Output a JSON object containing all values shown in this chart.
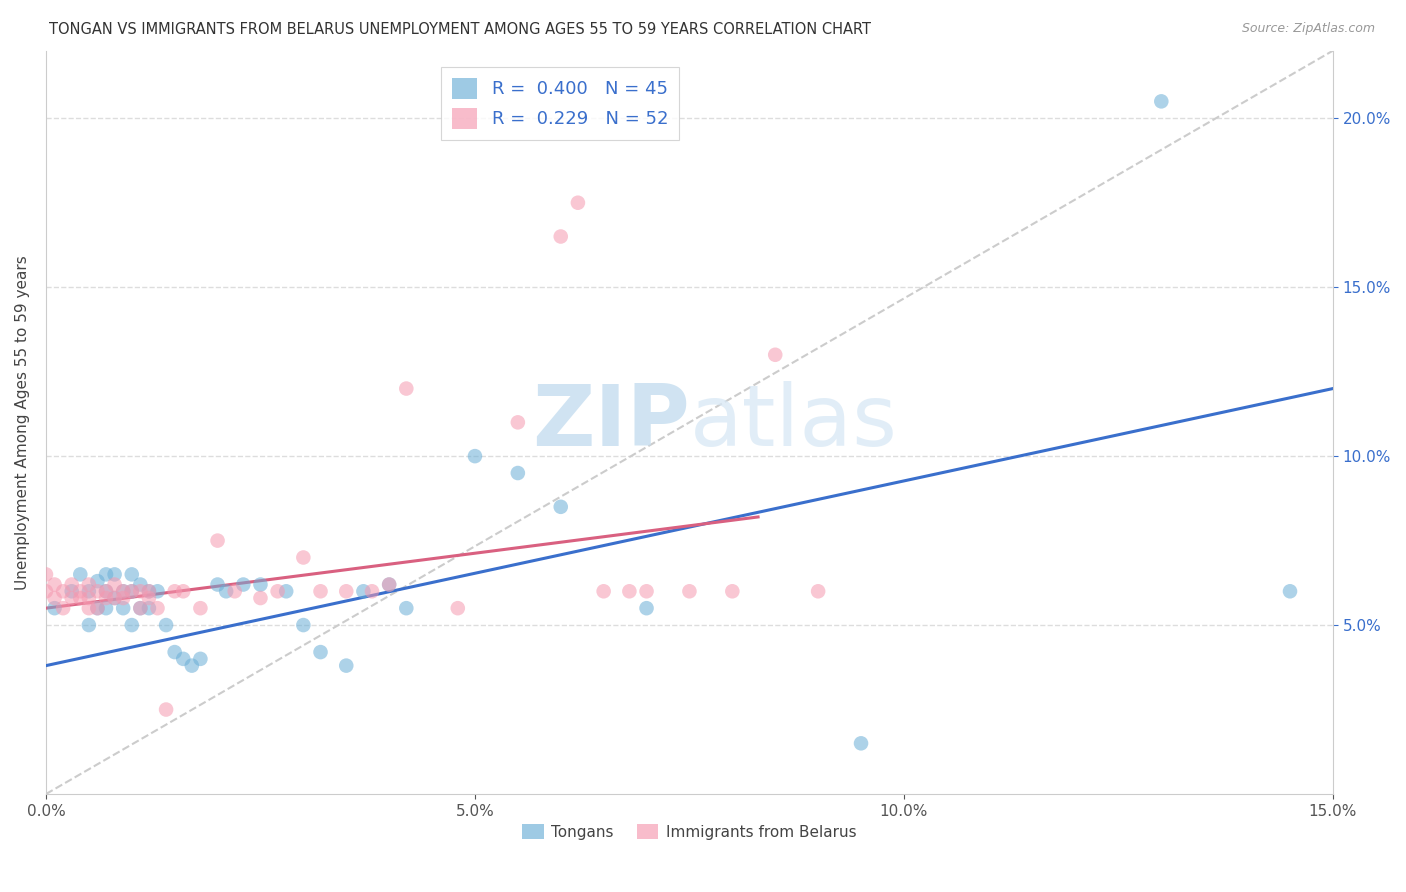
{
  "title": "TONGAN VS IMMIGRANTS FROM BELARUS UNEMPLOYMENT AMONG AGES 55 TO 59 YEARS CORRELATION CHART",
  "source": "Source: ZipAtlas.com",
  "ylabel": "Unemployment Among Ages 55 to 59 years",
  "xlim": [
    0.0,
    0.15
  ],
  "ylim": [
    0.0,
    0.22
  ],
  "x_ticks": [
    0.0,
    0.05,
    0.1,
    0.15
  ],
  "y_ticks": [
    0.05,
    0.1,
    0.15,
    0.2
  ],
  "x_tick_labels": [
    "0.0%",
    "5.0%",
    "10.0%",
    "15.0%"
  ],
  "y_tick_labels": [
    "5.0%",
    "10.0%",
    "15.0%",
    "20.0%"
  ],
  "legend_entries": [
    {
      "label": "Tongans",
      "color": "#7bafd4",
      "R": "0.400",
      "N": "45"
    },
    {
      "label": "Immigrants from Belarus",
      "color": "#f4a0b0",
      "R": "0.229",
      "N": "52"
    }
  ],
  "blue_scatter_x": [
    0.001,
    0.003,
    0.004,
    0.005,
    0.005,
    0.006,
    0.006,
    0.007,
    0.007,
    0.007,
    0.008,
    0.008,
    0.009,
    0.009,
    0.01,
    0.01,
    0.01,
    0.011,
    0.011,
    0.012,
    0.012,
    0.013,
    0.014,
    0.015,
    0.016,
    0.017,
    0.018,
    0.02,
    0.021,
    0.023,
    0.025,
    0.028,
    0.03,
    0.032,
    0.035,
    0.037,
    0.04,
    0.042,
    0.05,
    0.055,
    0.06,
    0.07,
    0.095,
    0.13,
    0.145
  ],
  "blue_scatter_y": [
    0.055,
    0.06,
    0.065,
    0.05,
    0.06,
    0.055,
    0.063,
    0.055,
    0.06,
    0.065,
    0.058,
    0.065,
    0.055,
    0.06,
    0.05,
    0.06,
    0.065,
    0.055,
    0.062,
    0.055,
    0.06,
    0.06,
    0.05,
    0.042,
    0.04,
    0.038,
    0.04,
    0.062,
    0.06,
    0.062,
    0.062,
    0.06,
    0.05,
    0.042,
    0.038,
    0.06,
    0.062,
    0.055,
    0.1,
    0.095,
    0.085,
    0.055,
    0.015,
    0.205,
    0.06
  ],
  "pink_scatter_x": [
    0.0,
    0.0,
    0.001,
    0.001,
    0.002,
    0.002,
    0.003,
    0.003,
    0.004,
    0.004,
    0.005,
    0.005,
    0.005,
    0.006,
    0.006,
    0.007,
    0.007,
    0.008,
    0.008,
    0.009,
    0.009,
    0.01,
    0.011,
    0.011,
    0.012,
    0.012,
    0.013,
    0.014,
    0.015,
    0.016,
    0.018,
    0.02,
    0.022,
    0.025,
    0.027,
    0.03,
    0.032,
    0.035,
    0.038,
    0.04,
    0.042,
    0.048,
    0.055,
    0.06,
    0.062,
    0.065,
    0.068,
    0.07,
    0.075,
    0.08,
    0.085,
    0.09
  ],
  "pink_scatter_y": [
    0.06,
    0.065,
    0.058,
    0.062,
    0.055,
    0.06,
    0.058,
    0.062,
    0.058,
    0.06,
    0.055,
    0.058,
    0.062,
    0.055,
    0.06,
    0.058,
    0.06,
    0.058,
    0.062,
    0.058,
    0.06,
    0.06,
    0.055,
    0.06,
    0.058,
    0.06,
    0.055,
    0.025,
    0.06,
    0.06,
    0.055,
    0.075,
    0.06,
    0.058,
    0.06,
    0.07,
    0.06,
    0.06,
    0.06,
    0.062,
    0.12,
    0.055,
    0.11,
    0.165,
    0.175,
    0.06,
    0.06,
    0.06,
    0.06,
    0.06,
    0.13,
    0.06
  ],
  "blue_line_x": [
    0.0,
    0.15
  ],
  "blue_line_y": [
    0.038,
    0.12
  ],
  "pink_line_x": [
    0.0,
    0.083
  ],
  "pink_line_y": [
    0.055,
    0.082
  ],
  "dashed_line_x": [
    0.0,
    0.15
  ],
  "dashed_line_y": [
    0.0,
    0.22
  ],
  "blue_color": "#6aaed6",
  "pink_color": "#f599b0",
  "blue_line_color": "#3a6fcc",
  "pink_line_color": "#d96080",
  "dashed_color": "#cccccc",
  "watermark_zip": "ZIP",
  "watermark_atlas": "atlas",
  "background_color": "#ffffff",
  "grid_color": "#dddddd"
}
